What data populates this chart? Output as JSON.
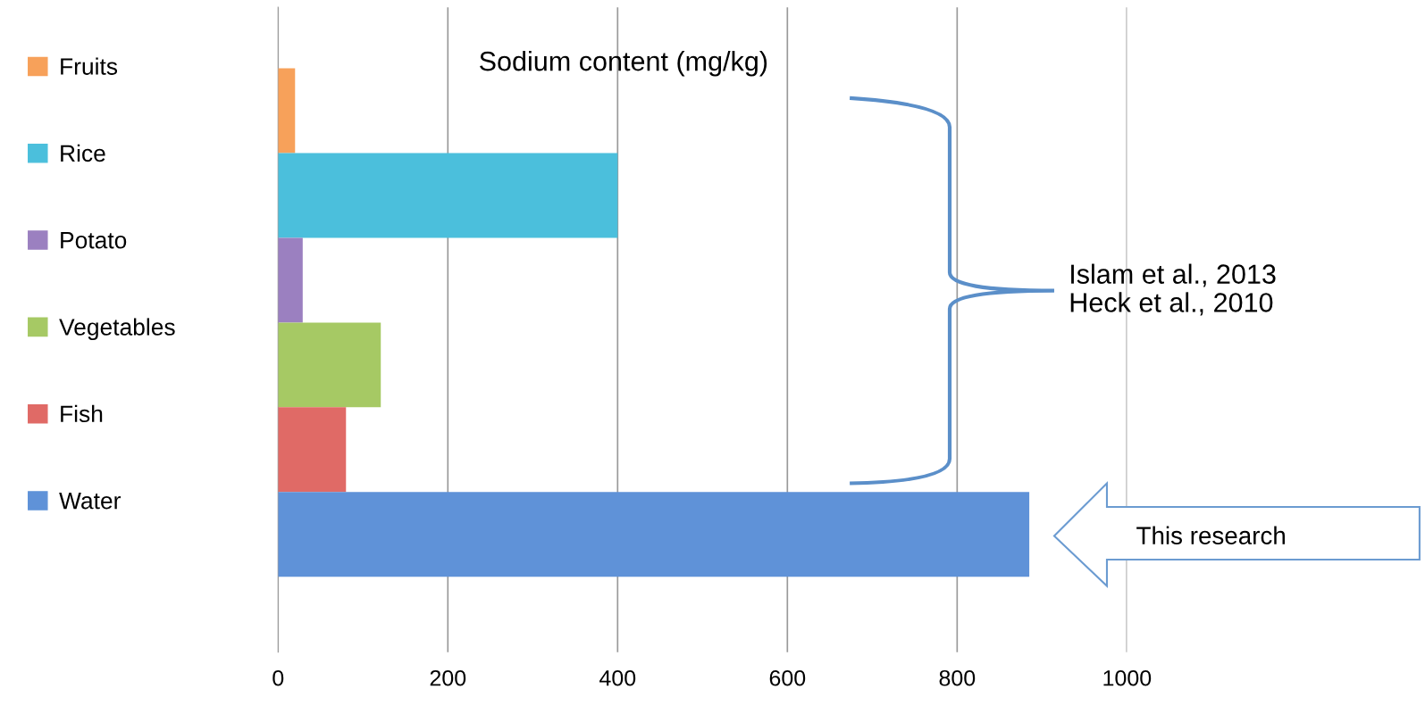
{
  "chart_data": {
    "type": "bar",
    "orientation": "horizontal",
    "title": "Sodium content (mg/kg)",
    "categories": [
      null
    ],
    "series": [
      {
        "name": "Fruits",
        "color": "#f7a15a",
        "values": [
          20
        ]
      },
      {
        "name": "Rice",
        "color": "#4bbfdc",
        "values": [
          400
        ]
      },
      {
        "name": "Potato",
        "color": "#9b80c0",
        "values": [
          29
        ]
      },
      {
        "name": "Vegetables",
        "color": "#a6c964",
        "values": [
          121
        ]
      },
      {
        "name": "Fish",
        "color": "#e06a66",
        "values": [
          80
        ]
      },
      {
        "name": "Water",
        "color": "#5f92d8",
        "values": [
          885
        ]
      }
    ],
    "xlim": [
      0,
      1000
    ],
    "xticks": [
      0,
      200,
      400,
      600,
      800,
      1000
    ],
    "grid": "x",
    "legend": "left",
    "annotations": [
      "Islam et al., 2013\nHeck et al., 2010",
      "This research"
    ]
  }
}
